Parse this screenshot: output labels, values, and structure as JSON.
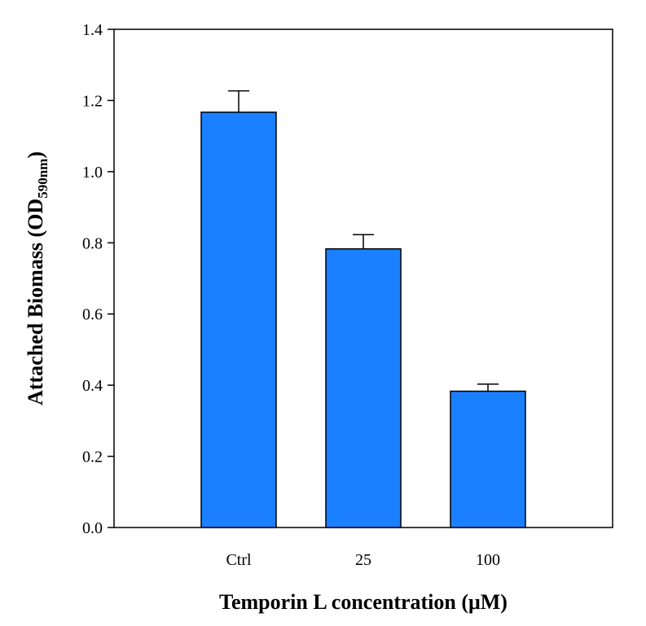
{
  "chart_data": {
    "type": "bar",
    "categories": [
      "Ctrl",
      "25",
      "100"
    ],
    "values": [
      1.167,
      0.783,
      0.383
    ],
    "errors": [
      0.06,
      0.04,
      0.02
    ],
    "ylim": [
      0,
      1.4
    ],
    "yticks": [
      0.0,
      0.2,
      0.4,
      0.6,
      0.8,
      1.0,
      1.2,
      1.4
    ],
    "ytick_labels": [
      "0.0",
      "0.2",
      "0.4",
      "0.6",
      "0.8",
      "1.0",
      "1.2",
      "1.4"
    ],
    "xlabel": "Temporin L concentration (μM)",
    "ylabel": {
      "main": "Attached Biomass (OD",
      "subscript": "590nm",
      "close": ")"
    },
    "bar_color": "#1a80ff",
    "grid": false
  }
}
